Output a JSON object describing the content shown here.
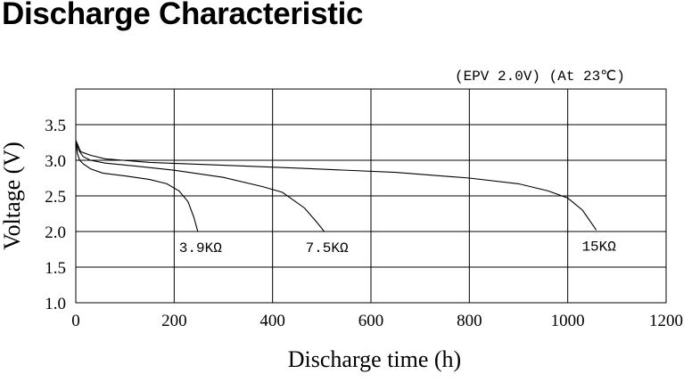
{
  "chart_data": {
    "type": "line",
    "title": "Discharge Characteristic",
    "annotation": "(EPV 2.0V) (At 23℃)",
    "xlabel": "Discharge time (h)",
    "ylabel": "Voltage (V)",
    "xlim": [
      0,
      1200
    ],
    "ylim": [
      1.0,
      4.0
    ],
    "x_ticks": [
      0,
      200,
      400,
      600,
      800,
      1000,
      1200
    ],
    "y_ticks": [
      1.0,
      1.5,
      2.0,
      2.5,
      3.0,
      3.5
    ],
    "x_tick_labels": [
      "0",
      "200",
      "400",
      "600",
      "800",
      "1000",
      "1200"
    ],
    "y_tick_labels": [
      "1.0",
      "1.5",
      "2.0",
      "2.5",
      "3.0",
      "3.5"
    ],
    "grid": true,
    "series": [
      {
        "name": "3.9KΩ",
        "x": [
          0,
          3,
          8,
          15,
          30,
          55,
          100,
          150,
          185,
          210,
          228,
          240,
          248
        ],
        "y": [
          3.27,
          3.1,
          3.0,
          2.95,
          2.88,
          2.82,
          2.78,
          2.73,
          2.67,
          2.57,
          2.42,
          2.2,
          2.0
        ]
      },
      {
        "name": "7.5KΩ",
        "x": [
          0,
          5,
          15,
          30,
          60,
          120,
          200,
          300,
          380,
          420,
          465,
          490,
          505
        ],
        "y": [
          3.28,
          3.15,
          3.05,
          3.0,
          2.96,
          2.92,
          2.86,
          2.76,
          2.63,
          2.55,
          2.33,
          2.13,
          2.0
        ]
      },
      {
        "name": "15KΩ",
        "x": [
          0,
          10,
          30,
          60,
          150,
          300,
          450,
          650,
          800,
          900,
          960,
          1000,
          1030,
          1058
        ],
        "y": [
          3.28,
          3.12,
          3.07,
          3.02,
          2.97,
          2.93,
          2.89,
          2.83,
          2.75,
          2.67,
          2.57,
          2.47,
          2.3,
          2.02
        ]
      }
    ]
  }
}
